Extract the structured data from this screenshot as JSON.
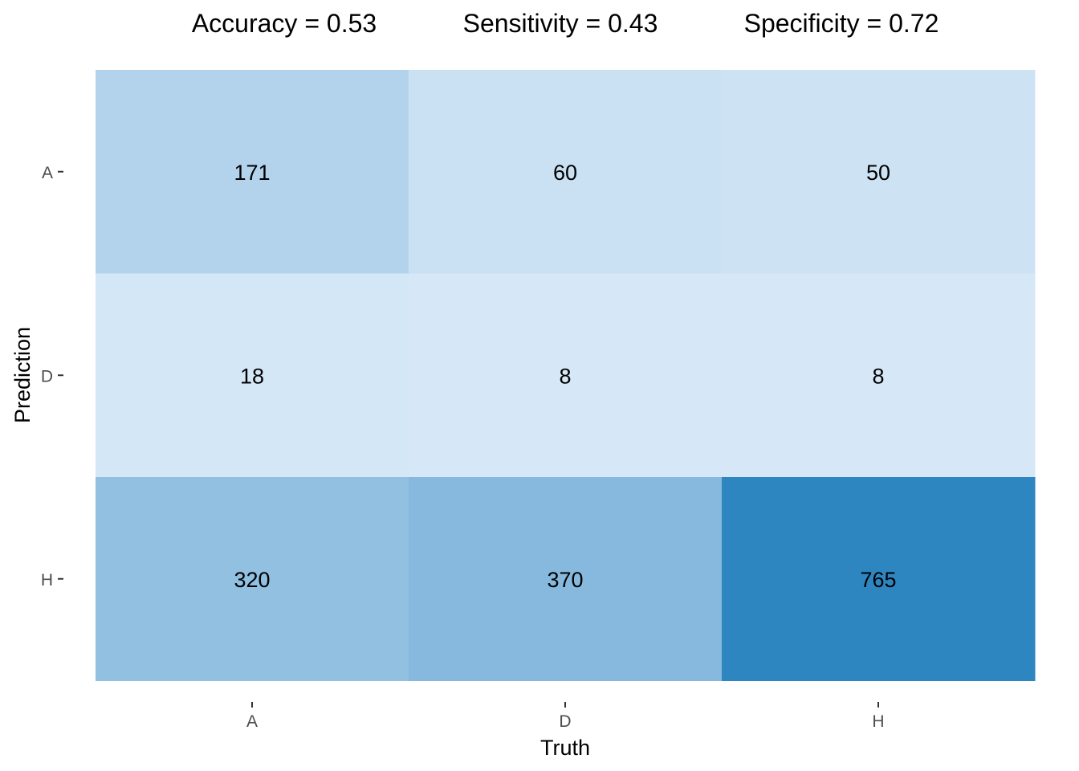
{
  "metrics": {
    "accuracy": "Accuracy = 0.53",
    "sensitivity": "Sensitivity = 0.43",
    "specificity": "Specificity = 0.72"
  },
  "chart_data": {
    "type": "heatmap",
    "title": "",
    "xlabel": "Truth",
    "ylabel": "Prediction",
    "x_categories": [
      "A",
      "D",
      "H"
    ],
    "y_categories": [
      "A",
      "D",
      "H"
    ],
    "values": [
      [
        171,
        60,
        50
      ],
      [
        18,
        8,
        8
      ],
      [
        320,
        370,
        765
      ]
    ],
    "colors": {
      "low": "#d6e8f7",
      "high": "#2e86c1"
    },
    "grid": false,
    "legend": "none"
  }
}
